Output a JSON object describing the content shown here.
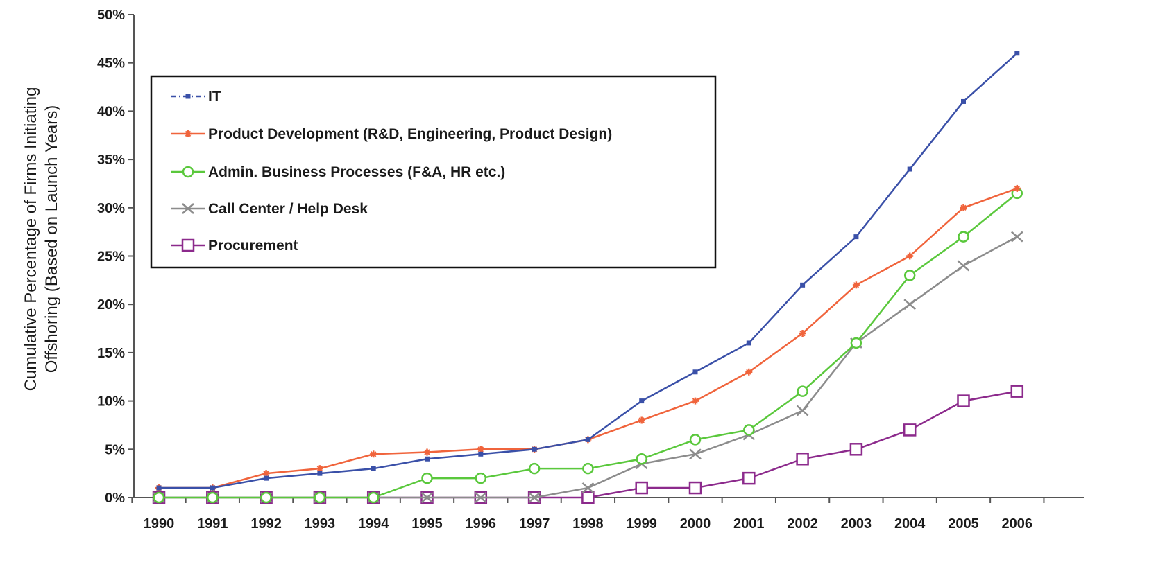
{
  "chart_data": {
    "type": "line",
    "title": "",
    "xlabel": "",
    "ylabel": "Cumulative Percentage of Firms Initiating Offshoring (Based on Launch Years)",
    "ylabel_lines": [
      "Cumulative Percentage of Firms Initiating",
      "Offshoring (Based on Launch Years)"
    ],
    "categories": [
      "1990",
      "1991",
      "1992",
      "1993",
      "1994",
      "1995",
      "1996",
      "1997",
      "1998",
      "1999",
      "2000",
      "2001",
      "2002",
      "2003",
      "2004",
      "2005",
      "2006"
    ],
    "yticks": [
      {
        "value": 0,
        "label": "0%"
      },
      {
        "value": 5,
        "label": "5%"
      },
      {
        "value": 10,
        "label": "10%"
      },
      {
        "value": 15,
        "label": "15%"
      },
      {
        "value": 20,
        "label": "20%"
      },
      {
        "value": 25,
        "label": "25%"
      },
      {
        "value": 30,
        "label": "30%"
      },
      {
        "value": 35,
        "label": "35%"
      },
      {
        "value": 40,
        "label": "40%"
      },
      {
        "value": 45,
        "label": "45%"
      },
      {
        "value": 50,
        "label": "50%"
      }
    ],
    "ylim": [
      0,
      50
    ],
    "grid": false,
    "legend": "top-left",
    "series": [
      {
        "name": "IT",
        "color": "#3a50a8",
        "marker": "small-square",
        "dash": "dash-dot",
        "values": [
          1,
          1,
          2,
          2.5,
          3,
          4,
          4.5,
          5,
          6,
          10,
          13,
          16,
          22,
          27,
          34,
          41,
          46
        ]
      },
      {
        "name": "Product Development (R&D, Engineering, Product Design)",
        "color": "#f0643c",
        "marker": "small-star",
        "dash": "solid",
        "values": [
          1,
          1,
          2.5,
          3,
          4.5,
          4.7,
          5,
          5,
          6,
          8,
          10,
          13,
          17,
          22,
          25,
          30,
          32
        ]
      },
      {
        "name": "Admin. Business Processes (F&A, HR etc.)",
        "color": "#5ac83c",
        "marker": "open-circle",
        "dash": "solid",
        "values": [
          0,
          0,
          0,
          0,
          0,
          2,
          2,
          3,
          3,
          4,
          6,
          7,
          11,
          16,
          23,
          27,
          31.5
        ]
      },
      {
        "name": "Call Center / Help Desk",
        "color": "#8c8c8c",
        "marker": "x",
        "dash": "solid",
        "values": [
          0,
          0,
          0,
          0,
          0,
          0,
          0,
          0,
          1,
          3.5,
          4.5,
          6.5,
          9,
          16,
          20,
          24,
          27
        ]
      },
      {
        "name": "Procurement",
        "color": "#8c2a8c",
        "marker": "open-square",
        "dash": "solid",
        "values": [
          0,
          0,
          0,
          0,
          0,
          0,
          0,
          0,
          0,
          1,
          1,
          2,
          4,
          5,
          7,
          10,
          11
        ]
      }
    ]
  }
}
